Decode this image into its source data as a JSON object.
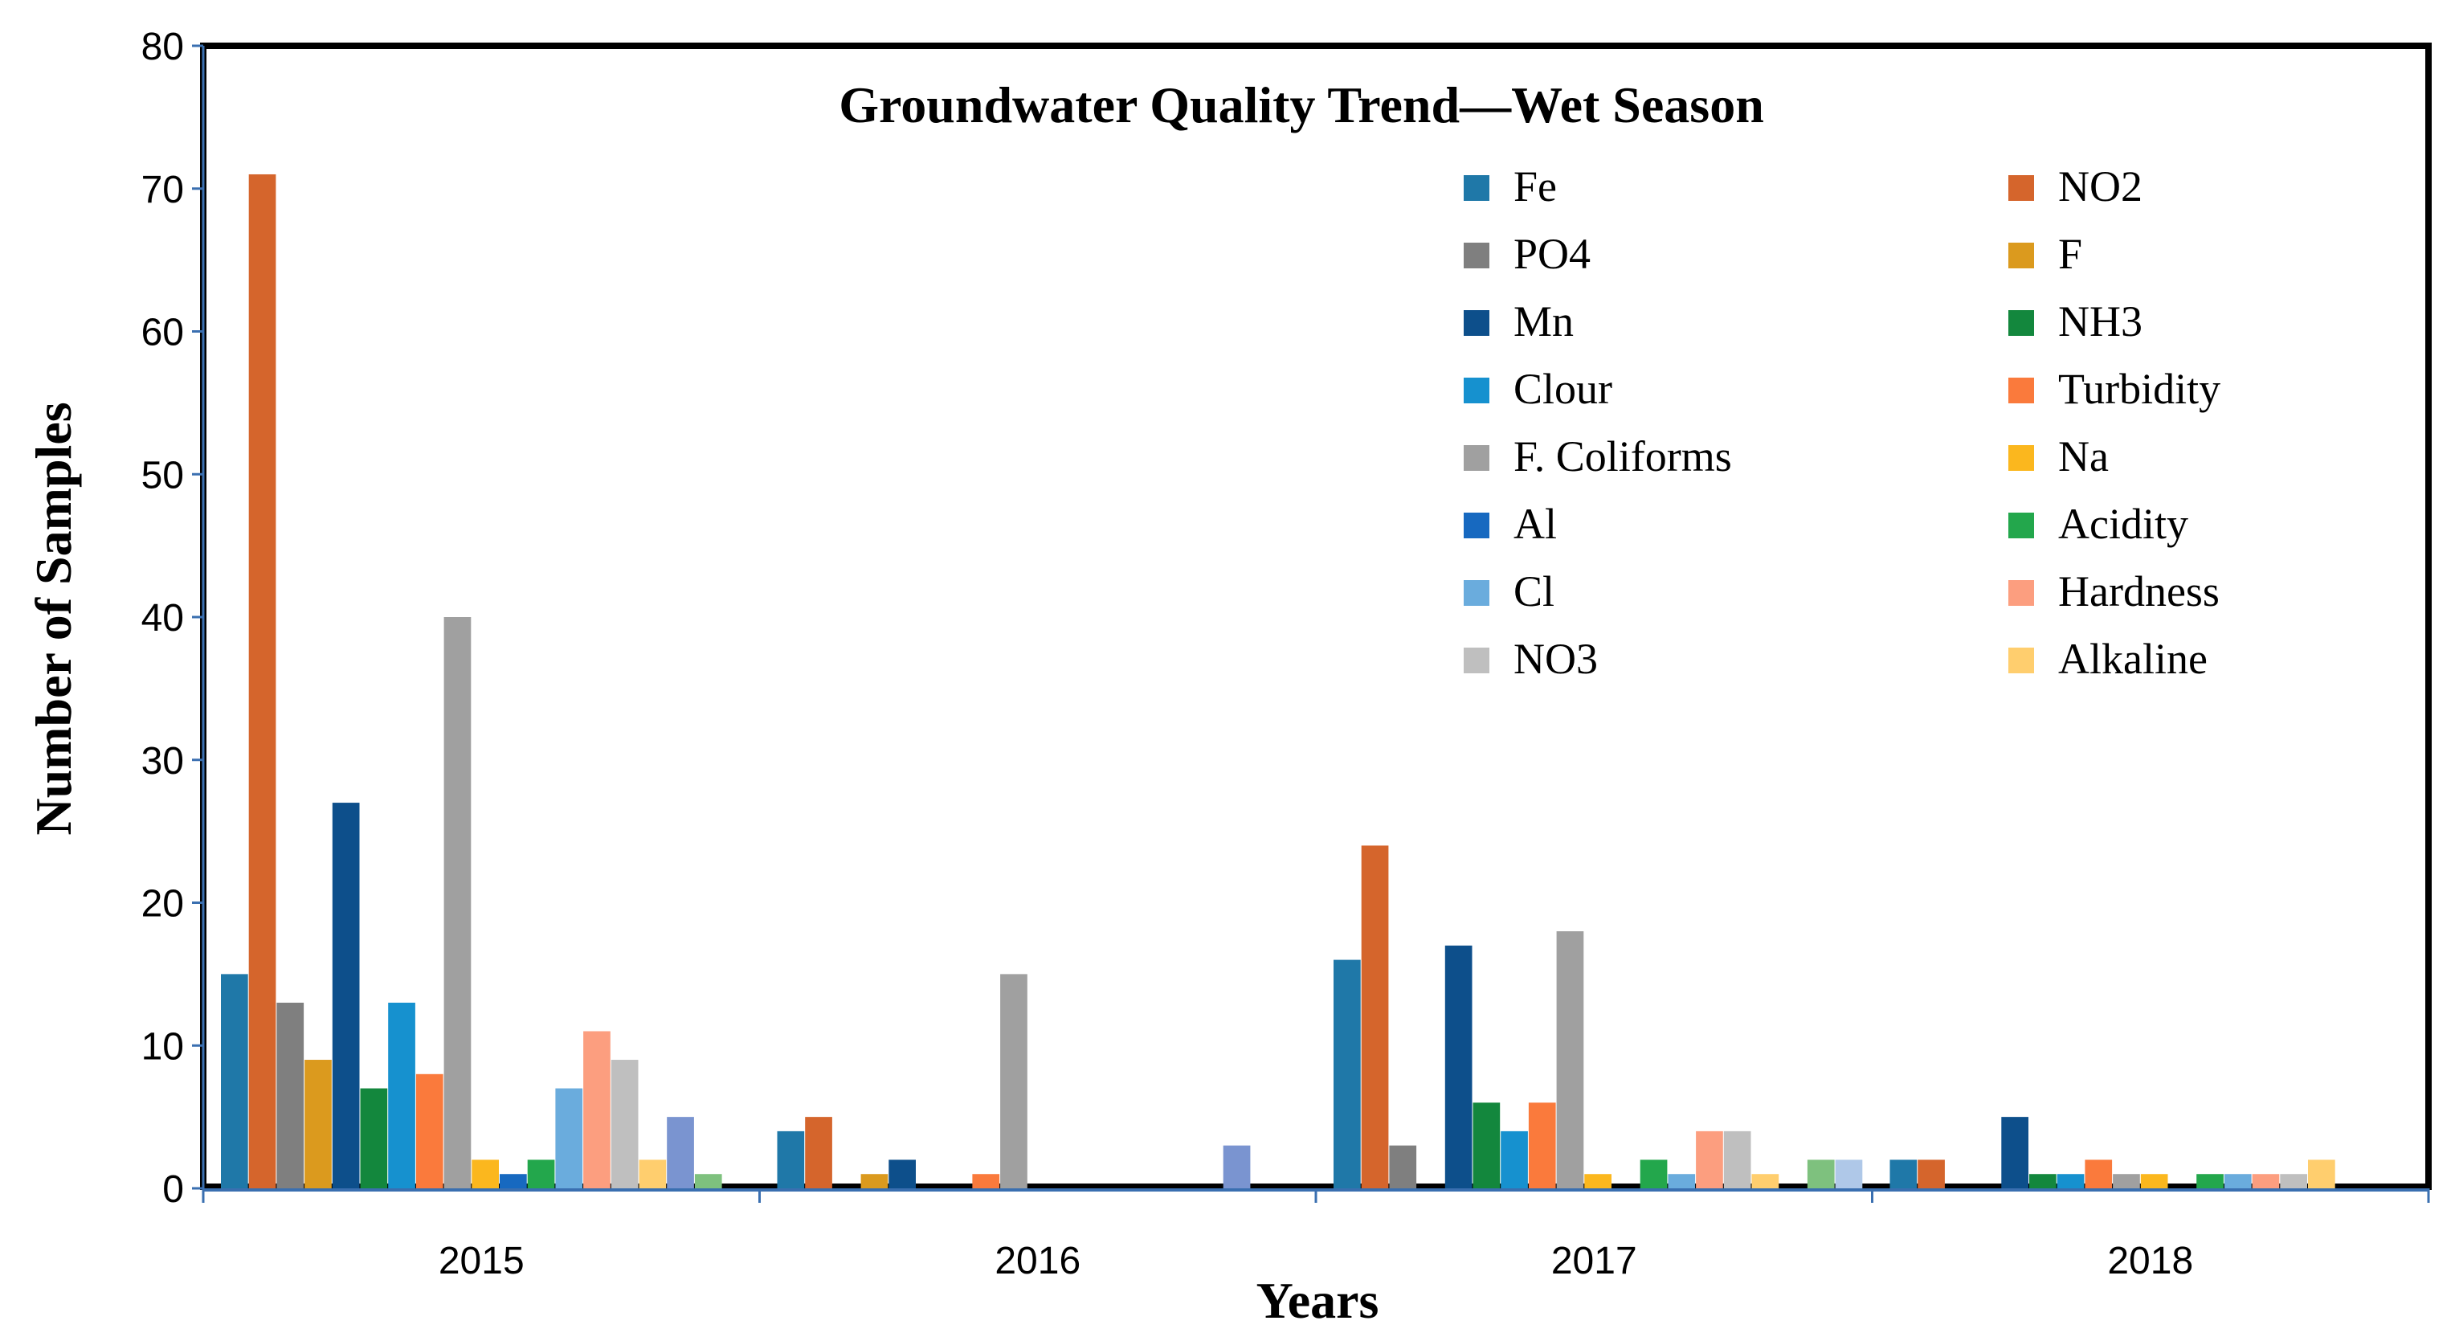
{
  "chart_data": {
    "type": "bar",
    "title": "Groundwater Quality Trend—Wet Season",
    "xlabel": "Years",
    "ylabel": "Number of Samples",
    "ylim": [
      0,
      80
    ],
    "yticks": [
      "0",
      "10",
      "20",
      "30",
      "40",
      "50",
      "60",
      "70",
      "80"
    ],
    "categories": [
      "2015",
      "2016",
      "2017",
      "2018"
    ],
    "grid": false,
    "legend_position": "top-right",
    "series": [
      {
        "name": "Fe",
        "color": "#1F78A8",
        "values": [
          15,
          4,
          16,
          2
        ]
      },
      {
        "name": "NO2",
        "color": "#D5652C",
        "values": [
          71,
          5,
          24,
          2
        ]
      },
      {
        "name": "PO4",
        "color": "#7F7F7F",
        "values": [
          13,
          0,
          3,
          0
        ]
      },
      {
        "name": "F",
        "color": "#DB9A1E",
        "values": [
          9,
          1,
          0,
          0
        ]
      },
      {
        "name": "Mn",
        "color": "#0D4F8B",
        "values": [
          27,
          2,
          17,
          5
        ]
      },
      {
        "name": "NH3",
        "color": "#13873D",
        "values": [
          7,
          0,
          6,
          1
        ]
      },
      {
        "name": "Clour",
        "color": "#1691CF",
        "values": [
          13,
          0,
          4,
          1
        ]
      },
      {
        "name": "Turbidity",
        "color": "#FA7A3C",
        "values": [
          8,
          1,
          6,
          2
        ]
      },
      {
        "name": "F. Coliforms",
        "color": "#A0A0A0",
        "values": [
          40,
          15,
          18,
          1
        ]
      },
      {
        "name": "Na",
        "color": "#FBB71E",
        "values": [
          2,
          0,
          1,
          1
        ]
      },
      {
        "name": "Al",
        "color": "#1769C0",
        "values": [
          1,
          0,
          0,
          0
        ]
      },
      {
        "name": "Acidity",
        "color": "#23A74C",
        "values": [
          2,
          0,
          2,
          1
        ]
      },
      {
        "name": "Cl",
        "color": "#6AACDD",
        "values": [
          7,
          0,
          1,
          1
        ]
      },
      {
        "name": "Hardness",
        "color": "#FC9E7F",
        "values": [
          11,
          0,
          4,
          1
        ]
      },
      {
        "name": "NO3",
        "color": "#BFBFBF",
        "values": [
          9,
          0,
          4,
          1
        ]
      },
      {
        "name": "Alkaline",
        "color": "#FFCE6E",
        "values": [
          2,
          0,
          1,
          2
        ]
      },
      {
        "name": "",
        "color": "#7A94D0",
        "values": [
          5,
          3,
          0,
          0
        ]
      },
      {
        "name": "",
        "color": "#7EC17E",
        "values": [
          1,
          0,
          2,
          0
        ]
      },
      {
        "name": "",
        "color": "#AFC8E8",
        "values": [
          0,
          0,
          2,
          0
        ]
      }
    ]
  }
}
